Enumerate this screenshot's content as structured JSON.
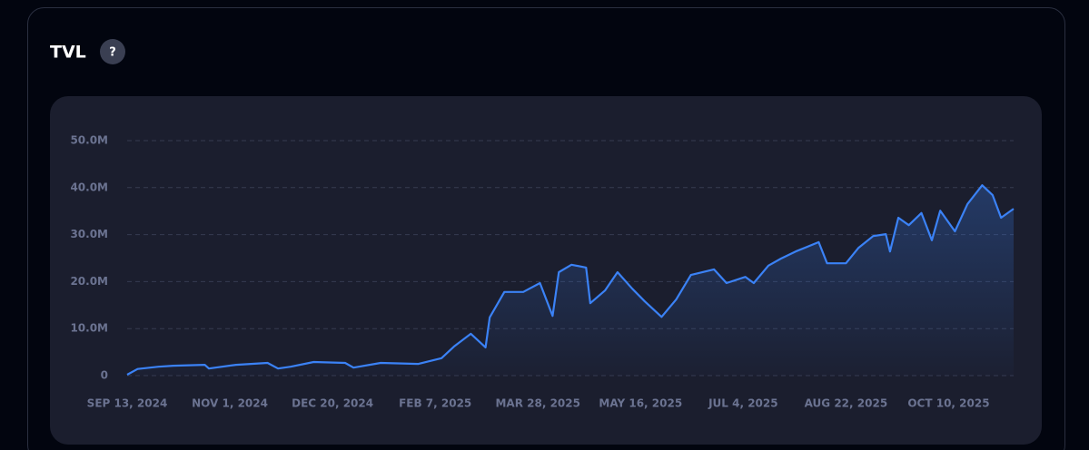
{
  "header": {
    "title": "TVL",
    "help": "?"
  },
  "chart_data": {
    "type": "line",
    "x": [
      "2024-09-13",
      "2024-09-18",
      "2024-09-28",
      "2024-10-05",
      "2024-10-20",
      "2024-10-22",
      "2024-11-04",
      "2024-11-19",
      "2024-11-24",
      "2024-11-30",
      "2024-12-11",
      "2024-12-26",
      "2024-12-30",
      "2025-01-12",
      "2025-01-30",
      "2025-02-10",
      "2025-02-16",
      "2025-02-24",
      "2025-03-03",
      "2025-03-05",
      "2025-03-12",
      "2025-03-21",
      "2025-03-29",
      "2025-04-04",
      "2025-04-07",
      "2025-04-13",
      "2025-04-20",
      "2025-04-22",
      "2025-04-29",
      "2025-05-05",
      "2025-05-12",
      "2025-05-18",
      "2025-05-26",
      "2025-06-02",
      "2025-06-09",
      "2025-06-20",
      "2025-06-26",
      "2025-07-05",
      "2025-07-09",
      "2025-07-16",
      "2025-07-22",
      "2025-07-29",
      "2025-08-09",
      "2025-08-13",
      "2025-08-22",
      "2025-08-28",
      "2025-09-04",
      "2025-09-10",
      "2025-09-12",
      "2025-09-16",
      "2025-09-21",
      "2025-09-27",
      "2025-10-02",
      "2025-10-06",
      "2025-10-13",
      "2025-10-19",
      "2025-10-26",
      "2025-10-31",
      "2025-11-04",
      "2025-11-10"
    ],
    "series": [
      {
        "name": "TVL",
        "color": "#3b82f6",
        "values": [
          200000,
          1400000,
          1900000,
          2100000,
          2300000,
          1500000,
          2300000,
          2700000,
          1500000,
          1900000,
          2900000,
          2700000,
          1700000,
          2700000,
          2500000,
          3700000,
          6200000,
          8900000,
          6000000,
          12400000,
          17800000,
          17800000,
          19700000,
          12700000,
          22000000,
          23600000,
          23000000,
          15400000,
          18100000,
          22000000,
          18500000,
          15800000,
          12500000,
          16200000,
          21400000,
          22600000,
          19700000,
          21000000,
          19700000,
          23400000,
          24900000,
          26400000,
          28400000,
          23900000,
          23900000,
          27200000,
          29700000,
          30100000,
          26400000,
          33600000,
          32000000,
          34600000,
          28800000,
          35100000,
          30700000,
          36500000,
          40500000,
          38400000,
          33600000,
          35500000
        ]
      }
    ],
    "xlim": [
      "2024-09-13",
      "2025-11-10"
    ],
    "xticks": [
      {
        "value": "2024-09-13",
        "label": "SEP 13, 2024"
      },
      {
        "value": "2024-11-01",
        "label": "NOV 1, 2024"
      },
      {
        "value": "2024-12-20",
        "label": "DEC 20, 2024"
      },
      {
        "value": "2025-02-07",
        "label": "FEB 7, 2025"
      },
      {
        "value": "2025-03-28",
        "label": "MAR 28, 2025"
      },
      {
        "value": "2025-05-16",
        "label": "MAY 16, 2025"
      },
      {
        "value": "2025-07-04",
        "label": "JUL 4, 2025"
      },
      {
        "value": "2025-08-22",
        "label": "AUG 22, 2025"
      },
      {
        "value": "2025-10-10",
        "label": "OCT 10, 2025"
      }
    ],
    "ylim": [
      0,
      50000000
    ],
    "yticks": [
      0,
      {
        "value": 10000000,
        "label": "10.0M"
      },
      {
        "value": 20000000,
        "label": "20.0M"
      },
      {
        "value": 30000000,
        "label": "30.0M"
      },
      {
        "value": 40000000,
        "label": "40.0M"
      },
      {
        "value": 50000000,
        "label": "50.0M"
      }
    ],
    "grid": true
  }
}
